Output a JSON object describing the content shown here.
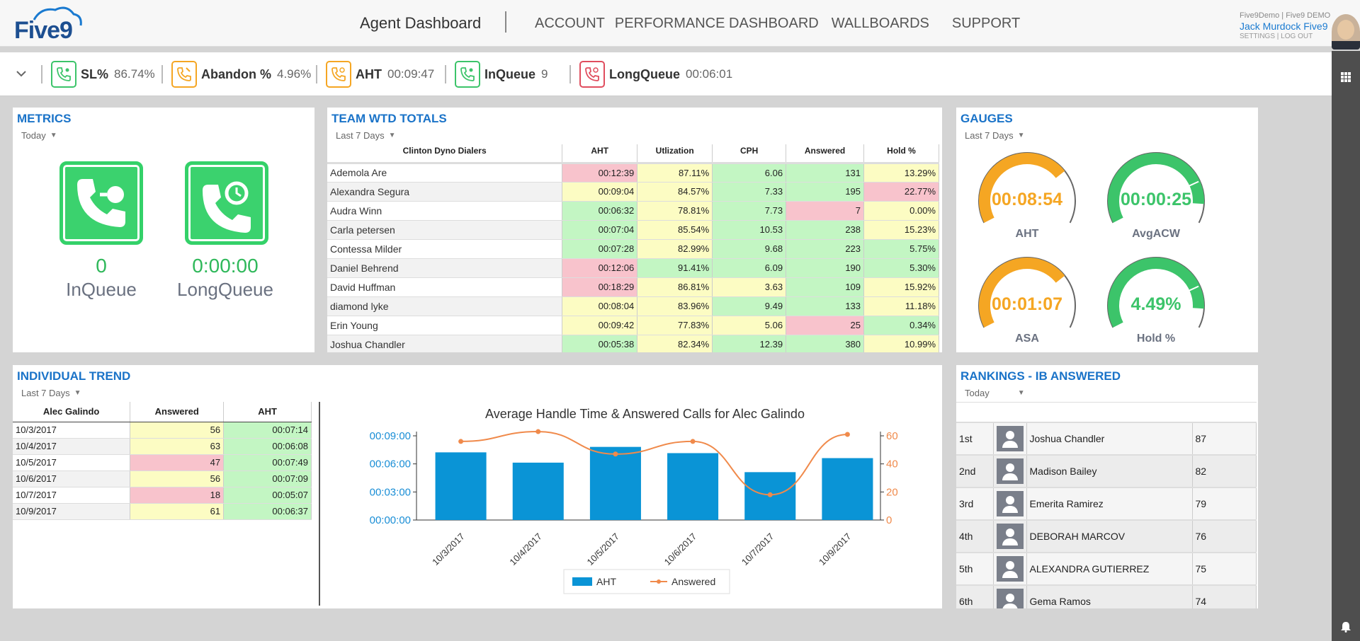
{
  "header": {
    "logo_text": "Five9",
    "app_title": "Agent Dashboard",
    "nav": [
      "ACCOUNT",
      "PERFORMANCE DASHBOARD",
      "WALLBOARDS",
      "SUPPORT"
    ],
    "org": "Five9Demo | Five9 DEMO",
    "user_name": "Jack Murdock Five9",
    "settings_link": "SETTINGS",
    "logout_link": "LOG OUT"
  },
  "stats": [
    {
      "label": "SL%",
      "value": "86.74%",
      "color": "#3cc46a"
    },
    {
      "label": "Abandon %",
      "value": "4.96%",
      "color": "#f5a623"
    },
    {
      "label": "AHT",
      "value": "00:09:47",
      "color": "#f5a623"
    },
    {
      "label": "InQueue",
      "value": "9",
      "color": "#3cc46a"
    },
    {
      "label": "LongQueue",
      "value": "00:06:01",
      "color": "#e04d5e"
    }
  ],
  "metrics": {
    "title": "METRICS",
    "filter": "Today",
    "inqueue_value": "0",
    "inqueue_label": "InQueue",
    "longqueue_value": "0:00:00",
    "longqueue_label": "LongQueue"
  },
  "team": {
    "title": "TEAM WTD TOTALS",
    "filter": "Last 7 Days",
    "columns": [
      "Clinton Dyno Dialers",
      "AHT",
      "Utlization",
      "CPH",
      "Answered",
      "Hold %"
    ],
    "rows": [
      {
        "name": "Ademola Are",
        "aht": "00:12:39",
        "util": "87.11%",
        "cph": "6.06",
        "ans": "131",
        "hold": "13.29%",
        "c": [
          "red",
          "yel",
          "grn",
          "grn",
          "yel"
        ]
      },
      {
        "name": "Alexandra Segura",
        "aht": "00:09:04",
        "util": "84.57%",
        "cph": "7.33",
        "ans": "195",
        "hold": "22.77%",
        "c": [
          "yel",
          "yel",
          "grn",
          "grn",
          "red"
        ]
      },
      {
        "name": "Audra Winn",
        "aht": "00:06:32",
        "util": "78.81%",
        "cph": "7.73",
        "ans": "7",
        "hold": "0.00%",
        "c": [
          "grn",
          "yel",
          "grn",
          "red",
          "yel"
        ]
      },
      {
        "name": "Carla petersen",
        "aht": "00:07:04",
        "util": "85.54%",
        "cph": "10.53",
        "ans": "238",
        "hold": "15.23%",
        "c": [
          "grn",
          "yel",
          "grn",
          "grn",
          "yel"
        ]
      },
      {
        "name": "Contessa Milder",
        "aht": "00:07:28",
        "util": "82.99%",
        "cph": "9.68",
        "ans": "223",
        "hold": "5.75%",
        "c": [
          "grn",
          "yel",
          "grn",
          "grn",
          "grn"
        ]
      },
      {
        "name": "Daniel Behrend",
        "aht": "00:12:06",
        "util": "91.41%",
        "cph": "6.09",
        "ans": "190",
        "hold": "5.30%",
        "c": [
          "red",
          "grn",
          "grn",
          "grn",
          "grn"
        ]
      },
      {
        "name": "David Huffman",
        "aht": "00:18:29",
        "util": "86.81%",
        "cph": "3.63",
        "ans": "109",
        "hold": "15.92%",
        "c": [
          "red",
          "yel",
          "yel",
          "grn",
          "yel"
        ]
      },
      {
        "name": "diamond lyke",
        "aht": "00:08:04",
        "util": "83.96%",
        "cph": "9.49",
        "ans": "133",
        "hold": "11.18%",
        "c": [
          "yel",
          "yel",
          "grn",
          "grn",
          "yel"
        ]
      },
      {
        "name": "Erin Young",
        "aht": "00:09:42",
        "util": "77.83%",
        "cph": "5.06",
        "ans": "25",
        "hold": "0.34%",
        "c": [
          "yel",
          "yel",
          "yel",
          "red",
          "grn"
        ]
      },
      {
        "name": "Joshua Chandler",
        "aht": "00:05:38",
        "util": "82.34%",
        "cph": "12.39",
        "ans": "380",
        "hold": "10.99%",
        "c": [
          "grn",
          "yel",
          "grn",
          "grn",
          "yel"
        ]
      }
    ]
  },
  "gauges": {
    "title": "GAUGES",
    "filter": "Last 7 Days",
    "items": [
      {
        "value": "00:08:54",
        "label": "AHT",
        "color": "#f5a623",
        "fraction": 0.72
      },
      {
        "value": "00:00:25",
        "label": "AvgACW",
        "color": "#3cc46a",
        "fraction": 0.9
      },
      {
        "value": "00:01:07",
        "label": "ASA",
        "color": "#f5a623",
        "fraction": 0.72
      },
      {
        "value": "4.49%",
        "label": "Hold %",
        "color": "#3cc46a",
        "fraction": 0.9
      }
    ]
  },
  "trend": {
    "title": "INDIVIDUAL TREND",
    "filter": "Last 7 Days",
    "columns": [
      "Alec Galindo",
      "Answered",
      "AHT"
    ],
    "rows": [
      {
        "date": "10/3/2017",
        "ans": "56",
        "aht": "00:07:14",
        "c": [
          "yel",
          "grn"
        ]
      },
      {
        "date": "10/4/2017",
        "ans": "63",
        "aht": "00:06:08",
        "c": [
          "yel",
          "grn"
        ]
      },
      {
        "date": "10/5/2017",
        "ans": "47",
        "aht": "00:07:49",
        "c": [
          "red",
          "grn"
        ]
      },
      {
        "date": "10/6/2017",
        "ans": "56",
        "aht": "00:07:09",
        "c": [
          "yel",
          "grn"
        ]
      },
      {
        "date": "10/7/2017",
        "ans": "18",
        "aht": "00:05:07",
        "c": [
          "red",
          "grn"
        ]
      },
      {
        "date": "10/9/2017",
        "ans": "61",
        "aht": "00:06:37",
        "c": [
          "yel",
          "grn"
        ]
      }
    ]
  },
  "chart_data": {
    "type": "bar",
    "title": "Average Handle Time & Answered Calls for Alec Galindo",
    "categories": [
      "10/3/2017",
      "10/4/2017",
      "10/5/2017",
      "10/6/2017",
      "10/7/2017",
      "10/9/2017"
    ],
    "series": [
      {
        "name": "AHT",
        "type": "bar",
        "axis": "left",
        "values_seconds": [
          434,
          368,
          469,
          429,
          307,
          397
        ],
        "color": "#0a94d6"
      },
      {
        "name": "Answered",
        "type": "line",
        "axis": "right",
        "values": [
          56,
          63,
          47,
          56,
          18,
          61
        ],
        "color": "#f08a4b"
      }
    ],
    "left_axis": {
      "ticks": [
        "00:00:00",
        "00:03:00",
        "00:06:00",
        "00:09:00"
      ],
      "max_seconds": 540
    },
    "right_axis": {
      "ticks": [
        "0",
        "20",
        "40",
        "60"
      ],
      "max": 60
    },
    "legend": "bottom",
    "grid": false
  },
  "rankings": {
    "title": "RANKINGS - IB ANSWERED",
    "filter": "Today",
    "rows": [
      {
        "rank": "1st",
        "name": "Joshua Chandler",
        "value": "87"
      },
      {
        "rank": "2nd",
        "name": "Madison Bailey",
        "value": "82"
      },
      {
        "rank": "3rd",
        "name": "Emerita Ramirez",
        "value": "79"
      },
      {
        "rank": "4th",
        "name": "DEBORAH MARCOV",
        "value": "76"
      },
      {
        "rank": "5th",
        "name": "ALEXANDRA GUTIERREZ",
        "value": "75"
      },
      {
        "rank": "6th",
        "name": "Gema Ramos",
        "value": "74"
      }
    ]
  }
}
